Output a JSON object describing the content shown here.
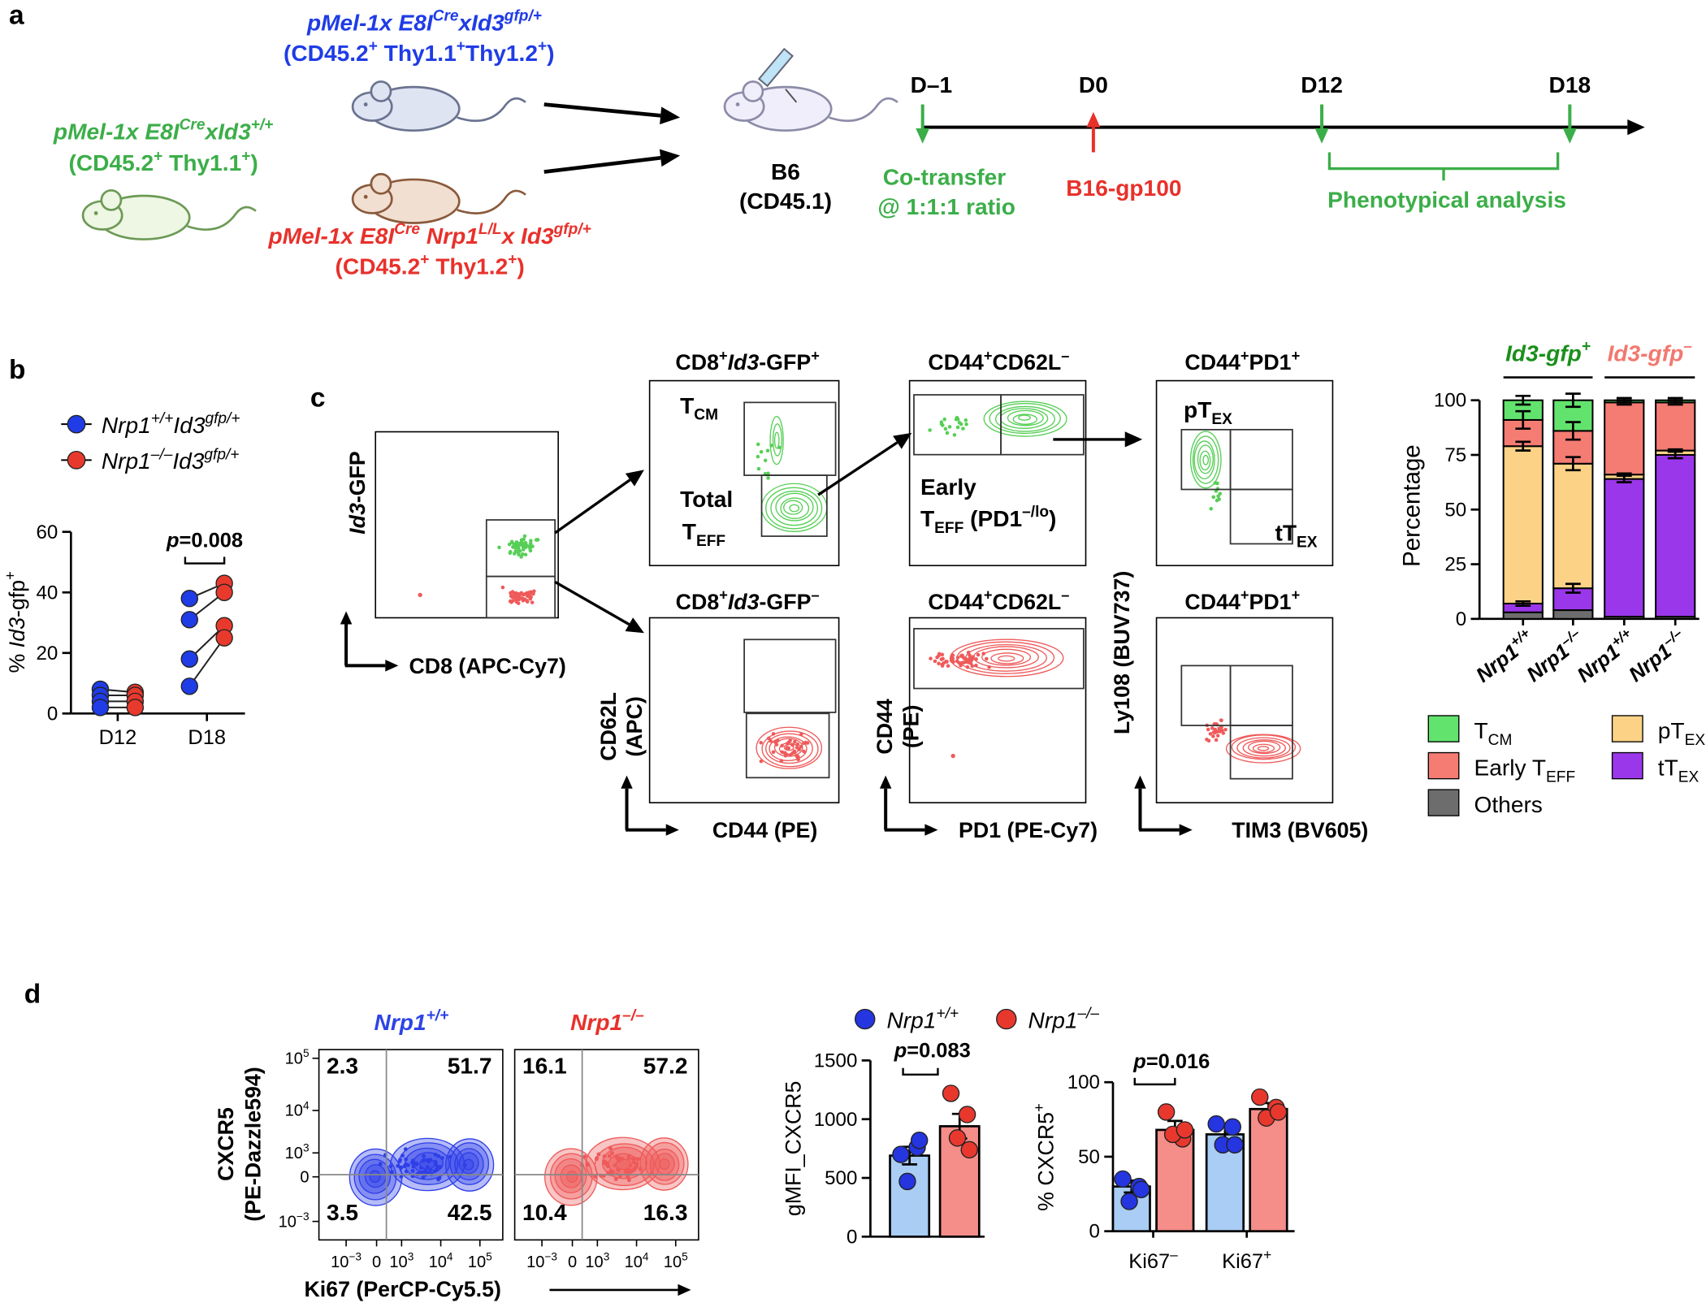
{
  "panel_labels": [
    "a",
    "b",
    "c",
    "d"
  ],
  "panel_a": {
    "donors": [
      {
        "genotype": [
          "pMel-1x E8I",
          {
            "sup": "Cre"
          },
          "xId3",
          {
            "sup": "gfp/+"
          }
        ],
        "markers": [
          "(CD45.2",
          {
            "sup": "+"
          },
          " Thy1.1",
          {
            "sup": "+"
          },
          "Thy1.2",
          {
            "sup": "+"
          },
          ")"
        ],
        "color": "#1f3ce6"
      },
      {
        "genotype": [
          "pMel-1x E8I",
          {
            "sup": "Cre"
          },
          "xId3",
          {
            "sup": "+/+"
          }
        ],
        "markers": [
          "(CD45.2",
          {
            "sup": "+"
          },
          " Thy1.1",
          {
            "sup": "+"
          },
          ")"
        ],
        "color": "#3cae49"
      },
      {
        "genotype": [
          "pMel-1x E8I",
          {
            "sup": "Cre"
          },
          " Nrp1",
          {
            "sup": "L/L"
          },
          "x Id3",
          {
            "sup": "gfp/+"
          }
        ],
        "markers": [
          "(CD45.2",
          {
            "sup": "+"
          },
          " Thy1.2",
          {
            "sup": "+"
          },
          ")"
        ],
        "color": "#e8312b"
      }
    ],
    "recipient": [
      "B6",
      "(CD45.1)"
    ],
    "days": [
      "D–1",
      "D0",
      "D12",
      "D18"
    ],
    "events": [
      [
        "Co-transfer",
        "@ 1:1:1 ratio"
      ],
      [
        "B16-gp100"
      ],
      [
        "Phenotypical analysis"
      ]
    ]
  },
  "panel_c_flow": {
    "titles": [
      [
        "CD8",
        {
          "sup": "+"
        },
        {
          "i": "Id3"
        },
        "-GFP",
        {
          "sup": "+"
        }
      ],
      [
        "CD44",
        {
          "sup": "+"
        },
        "CD62L",
        {
          "sup": "–"
        }
      ],
      [
        "CD44",
        {
          "sup": "+"
        },
        "PD1",
        {
          "sup": "+"
        }
      ],
      [
        "CD8",
        {
          "sup": "+"
        },
        {
          "i": "Id3"
        },
        "-GFP",
        {
          "sup": "–"
        }
      ],
      [
        "CD44",
        {
          "sup": "+"
        },
        "CD62L",
        {
          "sup": "–"
        }
      ],
      [
        "CD44",
        {
          "sup": "+"
        },
        "PD1",
        {
          "sup": "+"
        }
      ]
    ],
    "gate_labels": [
      [
        "T",
        {
          "sub": "CM"
        }
      ],
      [
        "Total"
      ],
      [
        "T",
        {
          "sub": "EFF"
        }
      ],
      [
        "Early"
      ],
      [
        "T",
        {
          "sub": "EFF"
        },
        " (PD1",
        {
          "sup": "–/lo"
        },
        ")"
      ],
      [
        "pT",
        {
          "sub": "EX"
        }
      ],
      [
        "tT",
        {
          "sub": "EX"
        }
      ]
    ],
    "axis_labels": [
      [
        {
          "i": "Id3"
        },
        "-GFP"
      ],
      [
        "CD8 (APC-Cy7)"
      ],
      [
        "CD62L"
      ],
      [
        "(APC)"
      ],
      [
        "CD44 (PE)"
      ],
      [
        "CD44"
      ],
      [
        "(PE)"
      ],
      [
        "PD1 (PE-Cy7)"
      ],
      [
        "Ly108 (BUV737)"
      ],
      [
        "TIM3 (BV605)"
      ]
    ]
  },
  "panel_d_flow": {
    "titles": [
      [
        "Nrp1",
        {
          "sup": "+/+"
        }
      ],
      [
        "Nrp1",
        {
          "sup": "–/–"
        }
      ]
    ],
    "title_colors": [
      "#2d44e6",
      "#e8312b"
    ],
    "quadrants": [
      [
        2.3,
        51.7,
        3.5,
        42.5
      ],
      [
        16.1,
        57.2,
        10.4,
        16.3
      ]
    ],
    "yticks": [
      [
        "10",
        {
          "sup": "5"
        }
      ],
      [
        "10",
        {
          "sup": "4"
        }
      ],
      [
        "10",
        {
          "sup": "3"
        }
      ],
      [
        "0"
      ],
      [
        "10",
        {
          "sup": "−3"
        }
      ]
    ],
    "xticks": [
      [
        "10",
        {
          "sup": "−3"
        }
      ],
      [
        "0"
      ],
      [
        "10",
        {
          "sup": "3"
        }
      ],
      [
        "10",
        {
          "sup": "4"
        }
      ],
      [
        "10",
        {
          "sup": "5"
        }
      ]
    ],
    "ylabel": [
      "CXCR5",
      "(PE-Dazzle594)"
    ],
    "xlabel": "Ki67 (PerCP-Cy5.5)"
  },
  "chart_data": [
    {
      "type": "paired_dots",
      "ylabel": [
        "% ",
        {
          "i": "Id3"
        },
        "-gfp",
        {
          "sup": "+"
        }
      ],
      "categories": [
        "D12",
        "D18"
      ],
      "ylim": [
        0,
        60
      ],
      "yticks": [
        0,
        20,
        40,
        60
      ],
      "series": [
        {
          "name": [
            "Nrp1",
            {
              "sup": "+/+"
            },
            "Id3",
            {
              "sup": "gfp/+"
            }
          ],
          "color": "#1f3ce6",
          "values": [
            [
              8,
              6,
              4,
              2
            ],
            [
              38,
              31,
              18,
              9
            ]
          ]
        },
        {
          "name": [
            "Nrp1",
            {
              "sup": "–/–"
            },
            "Id3",
            {
              "sup": "gfp/+"
            }
          ],
          "color": "#e8392d",
          "values": [
            [
              7,
              6,
              4,
              2
            ],
            [
              43,
              40,
              29,
              25
            ]
          ]
        }
      ],
      "annotations": [
        [
          {
            "i": "p"
          },
          "=0.008"
        ]
      ]
    },
    {
      "type": "stacked_bar",
      "ylabel": "Percentage",
      "ylim": [
        0,
        100
      ],
      "yticks": [
        0,
        25,
        50,
        75,
        100
      ],
      "categories": [
        [
          "Nrp1",
          {
            "sup": "+/+"
          }
        ],
        [
          "Nrp1",
          {
            "sup": "–/–"
          }
        ],
        [
          "Nrp1",
          {
            "sup": "+/+"
          }
        ],
        [
          "Nrp1",
          {
            "sup": "–/–"
          }
        ]
      ],
      "groups": [
        {
          "label": [
            "Id3-gfp",
            {
              "sup": "+"
            }
          ],
          "color": "#1c8f1c"
        },
        {
          "label": [
            "Id3-gfp",
            {
              "sup": "–"
            }
          ],
          "color": "#f2786e"
        }
      ],
      "series": [
        {
          "name": [
            "Others"
          ],
          "color": "#6d6d6d",
          "values": [
            3,
            4,
            1,
            1
          ]
        },
        {
          "name": [
            "tT",
            {
              "sub": "EX"
            }
          ],
          "color": "#9b37ea",
          "values": [
            4,
            10,
            63,
            74
          ],
          "errors": [
            1,
            2,
            1.5,
            1.5
          ]
        },
        {
          "name": [
            "pT",
            {
              "sub": "EX"
            }
          ],
          "color": "#fcd386",
          "values": [
            72,
            57,
            2,
            2
          ],
          "errors": [
            2,
            3,
            0.5,
            0.5
          ]
        },
        {
          "name": [
            "Early T",
            {
              "sub": "EFF"
            }
          ],
          "color": "#f47c73",
          "values": [
            12,
            15,
            33,
            22
          ],
          "errors": [
            4,
            4,
            1,
            1
          ]
        },
        {
          "name": [
            "T",
            {
              "sub": "CM"
            }
          ],
          "color": "#62e36e",
          "values": [
            9,
            14,
            1,
            1
          ],
          "errors": [
            2,
            3,
            1,
            1
          ]
        }
      ]
    },
    {
      "type": "bar_dots",
      "ylabel": "gMFI_CXCR5",
      "ylim": [
        0,
        1500
      ],
      "yticks": [
        0,
        500,
        1000,
        1500
      ],
      "series": [
        {
          "name": [
            "Nrp1",
            {
              "sup": "+/+"
            }
          ],
          "color": "#a9cdf4",
          "point_color": "#2535e0",
          "values": [
            690
          ],
          "errors": [
            75
          ],
          "points": [
            [
              700,
              760,
              470,
              820
            ]
          ]
        },
        {
          "name": [
            "Nrp1",
            {
              "sup": "–/–"
            }
          ],
          "color": "#f58d88",
          "point_color": "#e8382e",
          "values": [
            940
          ],
          "errors": [
            105
          ],
          "points": [
            [
              1220,
              1040,
              840,
              740
            ]
          ]
        }
      ],
      "annotations": [
        [
          {
            "i": "p"
          },
          "=0.083"
        ]
      ]
    },
    {
      "type": "bar_dots",
      "ylabel": [
        "% CXCR5",
        {
          "sup": "+"
        }
      ],
      "ylim": [
        0,
        100
      ],
      "yticks": [
        0,
        50,
        100
      ],
      "categories": [
        [
          "Ki67",
          {
            "sup": "–"
          }
        ],
        [
          "Ki67",
          {
            "sup": "+"
          }
        ]
      ],
      "series": [
        {
          "color": "#a9cdf4",
          "point_color": "#2535e0",
          "values": [
            30,
            65
          ],
          "errors": [
            4,
            6
          ],
          "points": [
            [
              35,
              30,
              20,
              28
            ],
            [
              72,
              70,
              58,
              58
            ]
          ]
        },
        {
          "color": "#f58d88",
          "point_color": "#e8382e",
          "values": [
            68,
            82
          ],
          "errors": [
            6,
            4
          ],
          "points": [
            [
              80,
              62,
              65,
              68
            ],
            [
              90,
              83,
              76,
              80
            ]
          ]
        }
      ],
      "annotations": [
        [
          {
            "i": "p"
          },
          "=0.016"
        ]
      ]
    }
  ]
}
